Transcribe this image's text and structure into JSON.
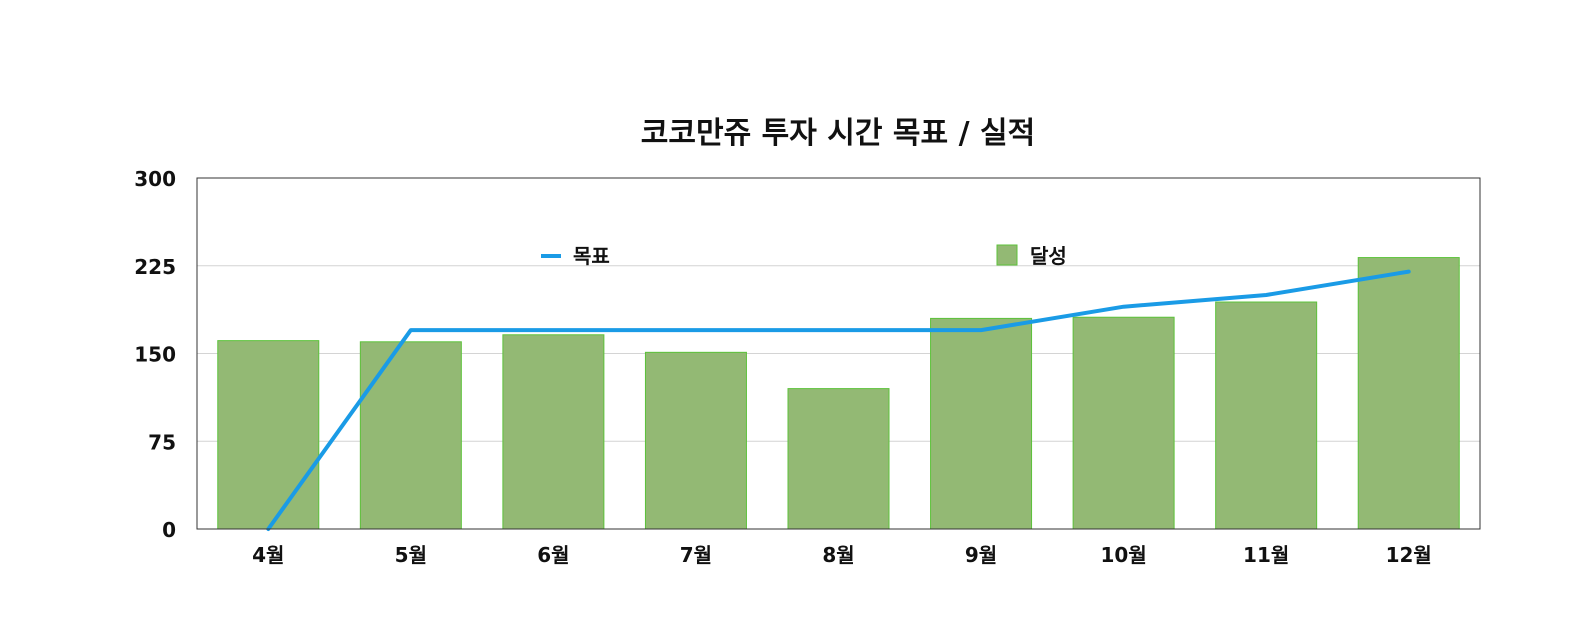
{
  "chart_data": {
    "type": "bar",
    "title": "코코만쥬 투자 시간 목표 / 실적",
    "xlabel": "",
    "ylabel": "",
    "categories": [
      "4월",
      "5월",
      "6월",
      "7월",
      "8월",
      "9월",
      "10월",
      "11월",
      "12월"
    ],
    "ylim": [
      0,
      300
    ],
    "yticks": [
      "0",
      "75",
      "150",
      "225",
      "300"
    ],
    "grid": true,
    "legend_position": "top",
    "series": [
      {
        "name": "목표",
        "kind": "line",
        "color": "#1a9be6",
        "values": [
          0,
          170,
          170,
          170,
          170,
          170,
          190,
          200,
          220
        ]
      },
      {
        "name": "달성",
        "kind": "bar",
        "color": "#93b974",
        "edge_color": "#5cc23a",
        "values": [
          161,
          160,
          166,
          151,
          120,
          180,
          181,
          194,
          232
        ]
      }
    ]
  }
}
